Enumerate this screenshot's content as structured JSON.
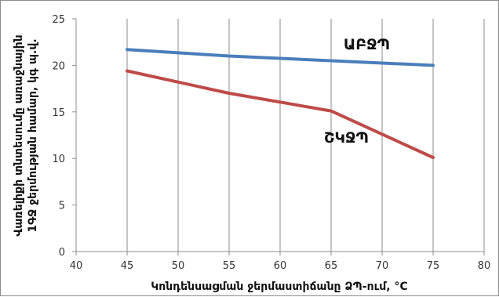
{
  "chart_data": {
    "type": "line",
    "xlabel": "Կոնդենսացման ջերմաստիճանը ՁՊ-ում, °C",
    "ylabel_lines": [
      "Վառելիքի տնտեսումը առաջնային",
      "1ԳՋ ջերմության համար, կգ պ.վ."
    ],
    "xlim": [
      40,
      80
    ],
    "ylim": [
      0,
      25
    ],
    "xticks": [
      "40",
      "45",
      "50",
      "55",
      "60",
      "65",
      "70",
      "75",
      "80"
    ],
    "yticks": [
      "0",
      "5",
      "10",
      "15",
      "20",
      "25"
    ],
    "grid": "vertical",
    "series": [
      {
        "name": "ԱԲՋՊ",
        "color": "#4a7ebb",
        "points": [
          [
            45,
            21.7
          ],
          [
            55,
            21.0
          ],
          [
            65,
            20.5
          ],
          [
            75,
            20.0
          ]
        ]
      },
      {
        "name": "ՇԿՋՊ",
        "color": "#be4b48",
        "points": [
          [
            45,
            19.4
          ],
          [
            55,
            17.0
          ],
          [
            65,
            15.1
          ],
          [
            75,
            10.1
          ]
        ]
      }
    ]
  }
}
